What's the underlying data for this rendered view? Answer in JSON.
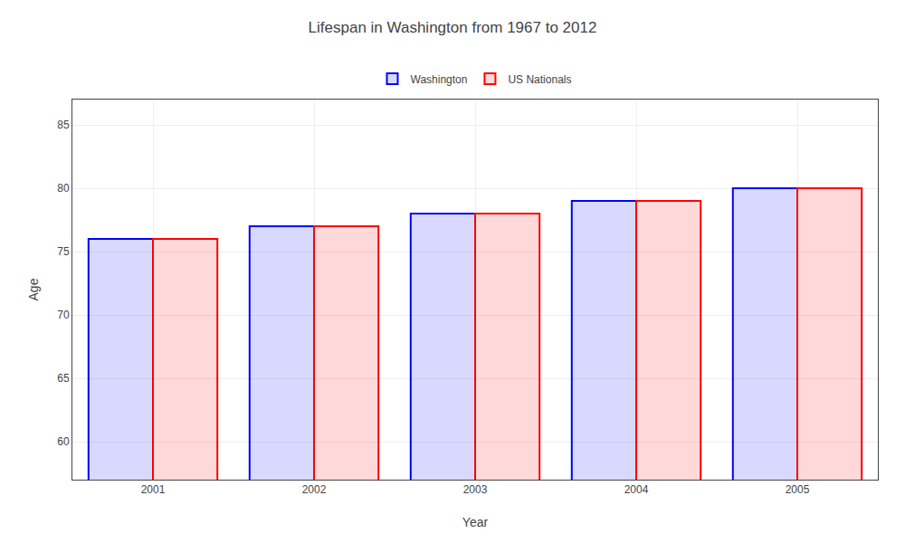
{
  "chart_data": {
    "type": "bar",
    "title": "Lifespan in Washington from 1967 to 2012",
    "x_label": "Year",
    "y_label": "Age",
    "categories": [
      "2001",
      "2002",
      "2003",
      "2004",
      "2005"
    ],
    "series": [
      {
        "name": "Washington",
        "color": "#0000ff",
        "values": [
          76,
          77,
          78,
          79,
          80
        ]
      },
      {
        "name": "US Nationals",
        "color": "#ff0000",
        "values": [
          76,
          77,
          78,
          79,
          80
        ]
      }
    ],
    "ylim": [
      57,
      87
    ],
    "yticks": [
      60,
      65,
      70,
      75,
      80,
      85
    ],
    "grid": true,
    "legend": "top"
  }
}
